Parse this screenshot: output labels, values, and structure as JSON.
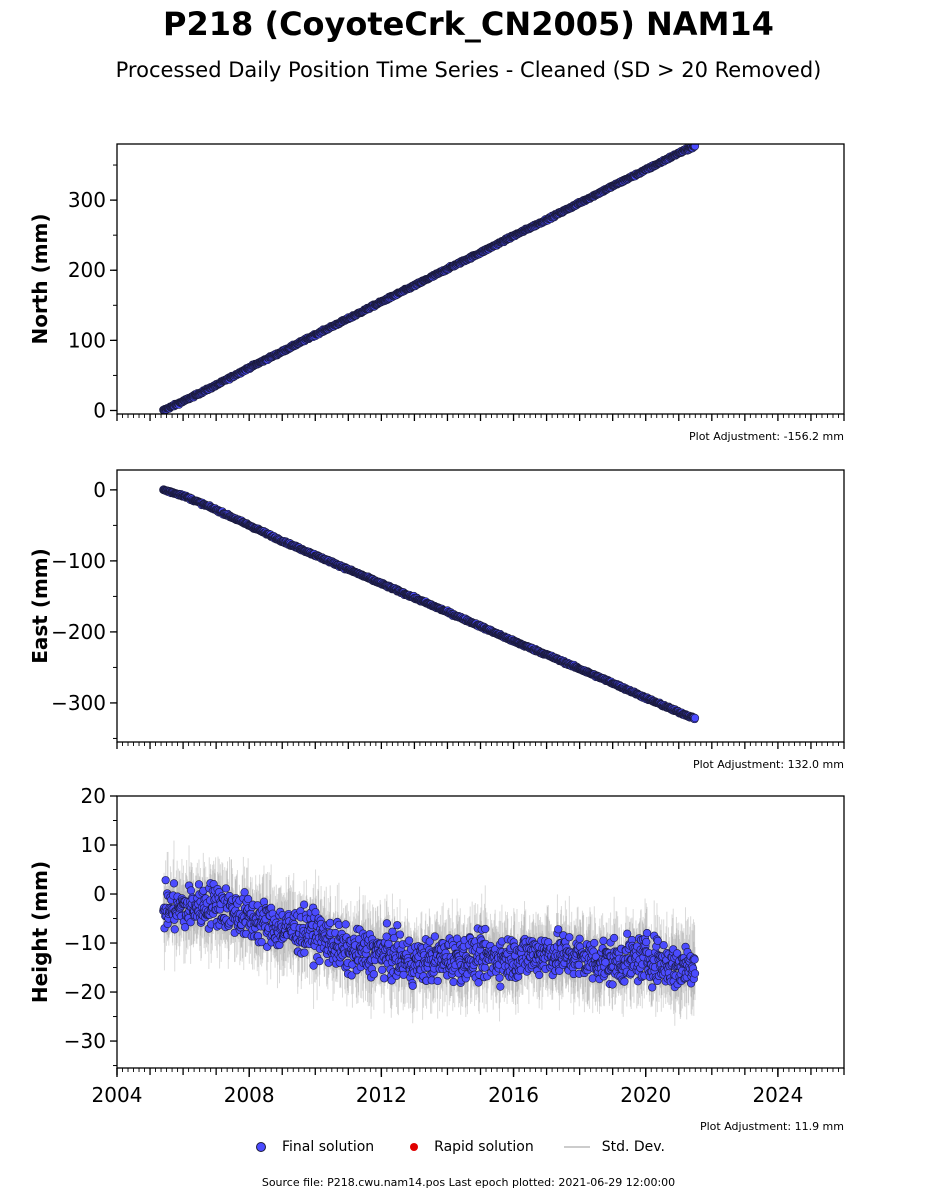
{
  "figure": {
    "title": "P218 (CoyoteCrk_CN2005) NAM14",
    "subtitle": "Processed Daily Position Time Series - Cleaned (SD > 20 Removed)",
    "source_text": "Source file: P218.cwu.nam14.pos  Last epoch plotted: 2021-06-29 12:00:00"
  },
  "legend": {
    "items": [
      {
        "label": "Final solution",
        "color": "#4b4bff",
        "kind": "dot"
      },
      {
        "label": "Rapid solution",
        "color": "#e00000",
        "kind": "dot"
      },
      {
        "label": "Std. Dev.",
        "color": "#cccccc",
        "kind": "line"
      }
    ]
  },
  "colors": {
    "final": "#4b4bff",
    "edge": "#1a1a3a",
    "stddev": "#999999"
  },
  "chart_data": [
    {
      "type": "scatter",
      "ylabel": "North (mm)",
      "adjustment": "Plot Adjustment: -156.2 mm",
      "xlim": [
        2004,
        2026
      ],
      "ylim": [
        -5,
        380
      ],
      "yticks": [
        0,
        100,
        200,
        300
      ],
      "ytick_labels": [
        "0",
        "100",
        "200",
        "300"
      ],
      "show_xtick_labels": false,
      "series": [
        {
          "x": [
            2005.4,
            2006.0,
            2007.0,
            2008.0,
            2009.0,
            2010.0,
            2011.0,
            2012.0,
            2013.0,
            2014.0,
            2015.0,
            2016.0,
            2017.0,
            2018.0,
            2019.0,
            2020.0,
            2021.0,
            2021.5
          ],
          "y": [
            0,
            13,
            36,
            61,
            84,
            108,
            131,
            155,
            178,
            202,
            225,
            249,
            272,
            296,
            320,
            343,
            367,
            377
          ],
          "noise": 2.5
        }
      ]
    },
    {
      "type": "scatter",
      "ylabel": "East (mm)",
      "adjustment": "Plot Adjustment: 132.0 mm",
      "xlim": [
        2004,
        2026
      ],
      "ylim": [
        -355,
        28
      ],
      "yticks": [
        0,
        -100,
        -200,
        -300
      ],
      "ytick_labels": [
        "0",
        "−100",
        "−200",
        "−300"
      ],
      "show_xtick_labels": false,
      "series": [
        {
          "x": [
            2005.4,
            2006.0,
            2007.0,
            2008.0,
            2009.0,
            2010.0,
            2011.0,
            2012.0,
            2013.0,
            2014.0,
            2015.0,
            2016.0,
            2017.0,
            2018.0,
            2019.0,
            2020.0,
            2021.0,
            2021.5
          ],
          "y": [
            0,
            -8,
            -28,
            -50,
            -72,
            -92,
            -112,
            -132,
            -152,
            -172,
            -192,
            -213,
            -232,
            -252,
            -272,
            -293,
            -313,
            -322
          ],
          "noise": 2.5
        }
      ]
    },
    {
      "type": "scatter",
      "ylabel": "Height (mm)",
      "adjustment": "Plot Adjustment: 11.9 mm",
      "xlim": [
        2004,
        2026
      ],
      "ylim": [
        -35.5,
        20
      ],
      "yticks": [
        20,
        10,
        0,
        -10,
        -20,
        -30
      ],
      "ytick_labels": [
        "20",
        "10",
        "0",
        "−10",
        "−20",
        "−30"
      ],
      "show_xtick_labels": true,
      "xticks": [
        2004,
        2008,
        2012,
        2016,
        2020,
        2024
      ],
      "xtick_labels": [
        "2004",
        "2008",
        "2012",
        "2016",
        "2020",
        "2024"
      ],
      "series": [
        {
          "x": [
            2005.4,
            2006.0,
            2007.0,
            2008.0,
            2009.0,
            2010.0,
            2011.0,
            2012.0,
            2013.0,
            2014.0,
            2015.0,
            2016.0,
            2017.0,
            2018.0,
            2019.0,
            2020.0,
            2021.0,
            2021.5
          ],
          "y": [
            -3,
            -3,
            -2,
            -5,
            -7,
            -8,
            -12,
            -12,
            -14,
            -13,
            -13,
            -13,
            -12,
            -13,
            -14,
            -13,
            -15,
            -14
          ],
          "noise": 7,
          "stddev": 6
        }
      ]
    }
  ]
}
